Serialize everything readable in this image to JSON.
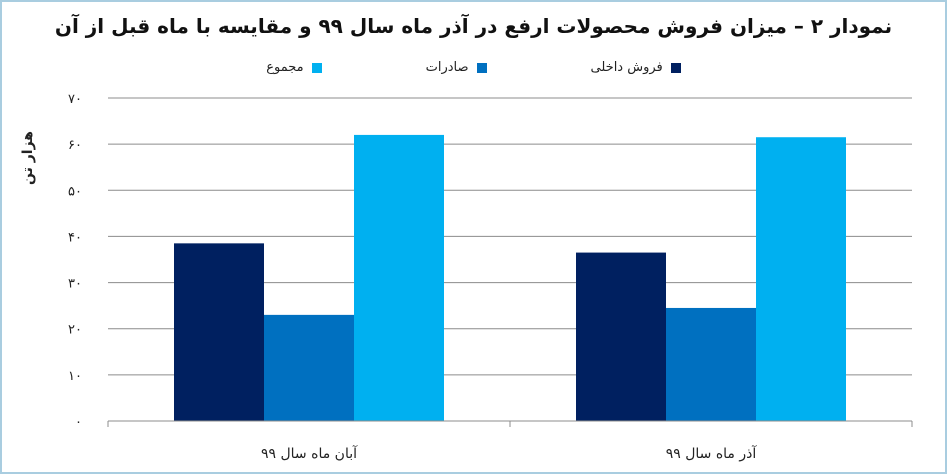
{
  "chart_data": {
    "type": "bar",
    "title": "نمودار ۲ – میزان فروش محصولات ارفع در آذر ماه سال ۹۹ و مقایسه با ماه قبل از آن",
    "ylabel": "هزار تن",
    "xlabel": "",
    "ylim": [
      0,
      70
    ],
    "yticks": [
      0,
      10,
      20,
      30,
      40,
      50,
      60,
      70
    ],
    "ytick_labels": [
      "۰",
      "۱۰",
      "۲۰",
      "۳۰",
      "۴۰",
      "۵۰",
      "۶۰",
      "۷۰"
    ],
    "categories": [
      "آذر ماه سال ۹۹",
      "آبان ماه سال ۹۹"
    ],
    "series": [
      {
        "name": "فروش داخلی",
        "color": "#002060",
        "values": [
          36.5,
          38.5
        ]
      },
      {
        "name": "صادرات",
        "color": "#0070c0",
        "values": [
          24.5,
          23
        ]
      },
      {
        "name": "مجموع",
        "color": "#00b0f0",
        "values": [
          61.5,
          62
        ]
      }
    ],
    "grid": true,
    "legend_position": "top"
  }
}
